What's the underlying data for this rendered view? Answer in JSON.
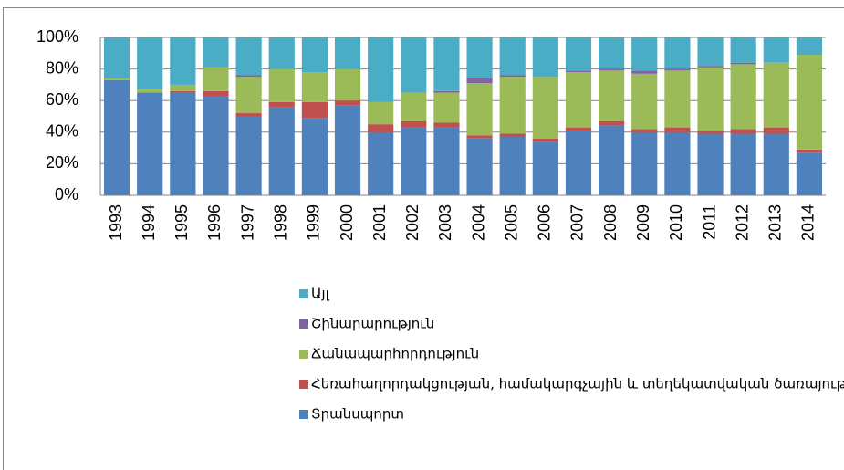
{
  "chart_data": {
    "type": "bar",
    "stacked": true,
    "categories": [
      "1993",
      "1994",
      "1995",
      "1996",
      "1997",
      "1998",
      "1999",
      "2000",
      "2001",
      "2002",
      "2003",
      "2004",
      "2005",
      "2006",
      "2007",
      "2008",
      "2009",
      "2010",
      "2011",
      "2012",
      "2013",
      "2014"
    ],
    "series": [
      {
        "name": "Տրանսպորտ",
        "color": "#4f81bd",
        "values": [
          73,
          65,
          65,
          63,
          50,
          56,
          49,
          57,
          40,
          43,
          43,
          36,
          37,
          34,
          41,
          44,
          40,
          40,
          39,
          39,
          39,
          27
        ]
      },
      {
        "name": "Հեռահաղորդակցության, համակարգչային և տեղեկատվական ծառայություններ",
        "color": "#c0504d",
        "values": [
          0,
          0,
          1,
          3,
          2,
          3,
          10,
          3,
          5,
          4,
          3,
          2,
          2,
          2,
          2,
          3,
          2,
          3,
          2,
          3,
          4,
          2
        ]
      },
      {
        "name": "Ճանապարհորդություն",
        "color": "#9bbb59",
        "values": [
          1,
          2,
          4,
          15,
          23,
          21,
          19,
          20,
          14,
          18,
          19,
          33,
          36,
          39,
          35,
          32,
          35,
          36,
          40,
          41,
          41,
          60
        ]
      },
      {
        "name": "Շինարարություն",
        "color": "#8064a2",
        "values": [
          0,
          0,
          0,
          0,
          1,
          0,
          0,
          0,
          0,
          0,
          1,
          3,
          1,
          0,
          1,
          1,
          2,
          1,
          1,
          1,
          0,
          0
        ]
      },
      {
        "name": "Այլ",
        "color": "#4bacc6",
        "values": [
          26,
          33,
          30,
          19,
          24,
          20,
          22,
          20,
          41,
          35,
          34,
          26,
          24,
          25,
          21,
          20,
          21,
          20,
          18,
          16,
          16,
          11
        ]
      }
    ],
    "ylim": [
      0,
      100
    ],
    "yticks": [
      {
        "value": 0,
        "label": "0%"
      },
      {
        "value": 20,
        "label": "20%"
      },
      {
        "value": 40,
        "label": "40%"
      },
      {
        "value": 60,
        "label": "60%"
      },
      {
        "value": 80,
        "label": "80%"
      },
      {
        "value": 100,
        "label": "100%"
      }
    ],
    "grid": true,
    "legend": "bottom-left"
  }
}
